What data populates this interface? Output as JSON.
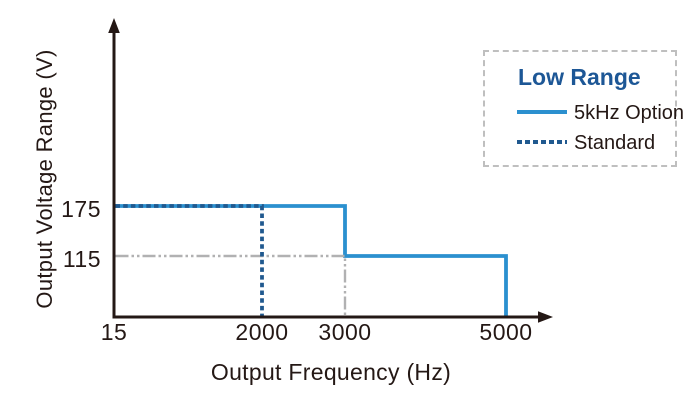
{
  "chart_data": {
    "type": "line",
    "xlabel": "Output Frequency (Hz)",
    "ylabel": "Output Voltage Range (V)",
    "x_ticks": [
      "15",
      "2000",
      "3000",
      "5000"
    ],
    "y_ticks": [
      "175",
      "115"
    ],
    "grid": "off",
    "legend": {
      "title": "Low Range",
      "position": "top-right",
      "entries": [
        {
          "label": "5kHz Option",
          "style": "solid"
        },
        {
          "label": "Standard",
          "style": "dashed"
        }
      ]
    },
    "series": [
      {
        "key": "option-5khz",
        "name": "5kHz Option",
        "style": "solid",
        "color": "#2b90cf",
        "points": [
          [
            15,
            175
          ],
          [
            3000,
            175
          ],
          [
            3000,
            115
          ],
          [
            5000,
            115
          ],
          [
            5000,
            0
          ]
        ]
      },
      {
        "key": "guide-115v",
        "name": "115 V guide line",
        "style": "dash-dot",
        "color": "#b1b1b2",
        "points": [
          [
            15,
            115
          ],
          [
            3000,
            115
          ],
          [
            3000,
            0
          ]
        ]
      },
      {
        "key": "standard",
        "name": "Standard",
        "style": "dashed",
        "color": "#20598f",
        "points": [
          [
            15,
            175
          ],
          [
            2000,
            175
          ],
          [
            2000,
            0
          ]
        ]
      }
    ]
  },
  "colors": {
    "solid_blue": "#2b90cf",
    "dashed_navy": "#20598f",
    "guide_gray": "#b1b1b2",
    "ink": "#241815",
    "legend_title_blue": "#1d5796",
    "legend_border_gray": "#bfbfbf",
    "background": "#ffffff"
  }
}
